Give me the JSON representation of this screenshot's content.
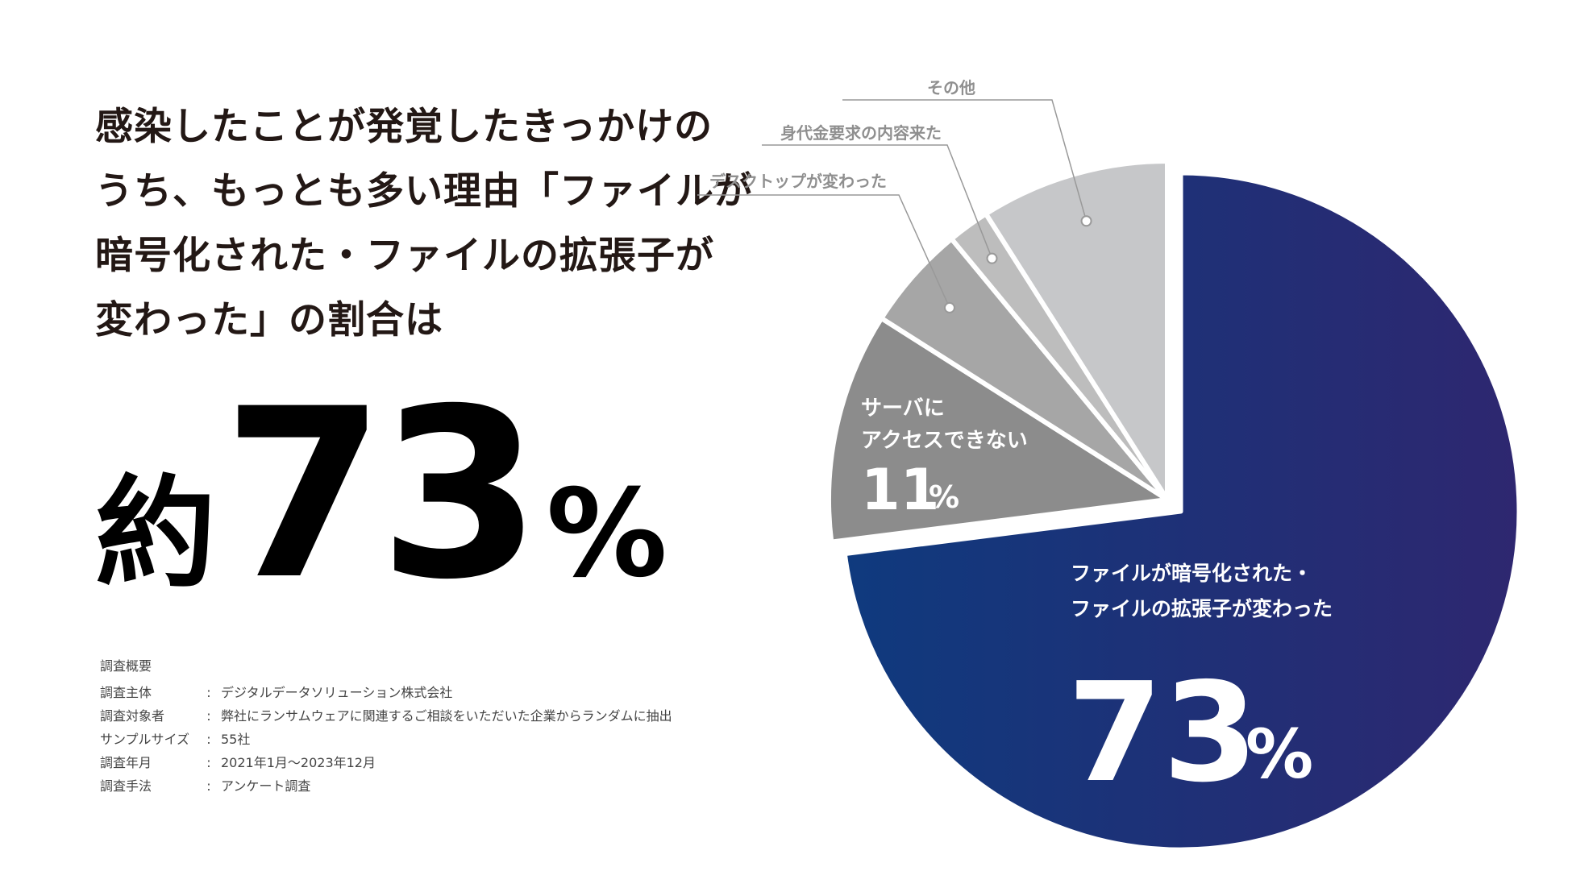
{
  "headline": {
    "lines": [
      "感染したことが発覚したきっかけの",
      "うち、もっとも多い理由「ファイルが",
      "暗号化された・ファイルの拡張子が",
      "変わった」の割合は"
    ]
  },
  "big_result": {
    "prefix": "約",
    "value": "73",
    "unit": "%"
  },
  "survey": {
    "title": "調査概要",
    "rows": [
      {
        "key": "調査主体",
        "value": "デジタルデータソリューション株式会社"
      },
      {
        "key": "調査対象者",
        "value": "弊社にランサムウェアに関連するご相談をいただいた企業からランダムに抽出"
      },
      {
        "key": "サンプルサイズ",
        "value": "55社"
      },
      {
        "key": "調査年月",
        "value": "2021年1月〜2023年12月"
      },
      {
        "key": "調査手法",
        "value": "アンケート調査"
      }
    ]
  },
  "chart_data": {
    "type": "pie",
    "title": "",
    "start": "12 o'clock",
    "direction": "clockwise",
    "slices": [
      {
        "label": "ファイルが暗号化された・ファイルの拡張子が変わった",
        "label_lines": [
          "ファイルが暗号化された・",
          "ファイルの拡張子が変わった"
        ],
        "value": 73,
        "display": "73",
        "unit": "%",
        "color_start": "#0f3a7e",
        "color_end": "#2e2770",
        "exploded": true,
        "label_style": "inside-large"
      },
      {
        "label": "サーバにアクセスできない",
        "label_lines": [
          "サーバに",
          "アクセスできない"
        ],
        "value": 11,
        "display": "11",
        "unit": "%",
        "color": "#8c8c8c",
        "exploded": false,
        "label_style": "inside-medium"
      },
      {
        "label": "デスクトップが変わった",
        "value": 5,
        "color": "#a6a6a6",
        "exploded": false,
        "label_style": "callout"
      },
      {
        "label": "身代金要求の内容来た",
        "value": 2,
        "color": "#bdbdbd",
        "exploded": false,
        "label_style": "callout"
      },
      {
        "label": "その他",
        "value": 9,
        "color": "#c6c7c9",
        "exploded": false,
        "label_style": "callout"
      }
    ],
    "callout_color": "#999999",
    "separator_color": "#ffffff"
  }
}
